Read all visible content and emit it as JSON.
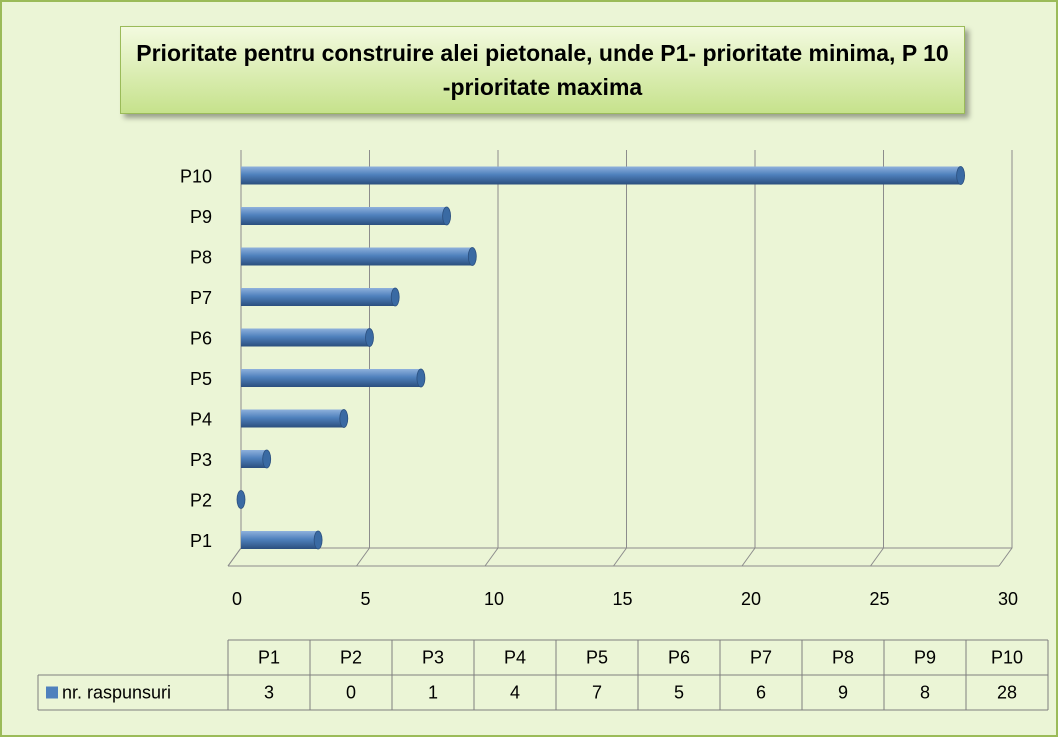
{
  "chart_data": {
    "type": "bar",
    "orientation": "horizontal",
    "title": "Prioritate pentru construire alei pietonale, unde P1- prioritate minima, P 10 -prioritate maxima",
    "categories": [
      "P1",
      "P2",
      "P3",
      "P4",
      "P5",
      "P6",
      "P7",
      "P8",
      "P9",
      "P10"
    ],
    "series": [
      {
        "name": "nr. raspunsuri",
        "color": "#4f81bd",
        "values": [
          3,
          0,
          1,
          4,
          7,
          5,
          6,
          9,
          8,
          28
        ]
      }
    ],
    "xlim": [
      0,
      30
    ],
    "xticks": [
      0,
      5,
      10,
      15,
      20,
      25,
      30
    ],
    "grid": true,
    "data_table": true
  }
}
